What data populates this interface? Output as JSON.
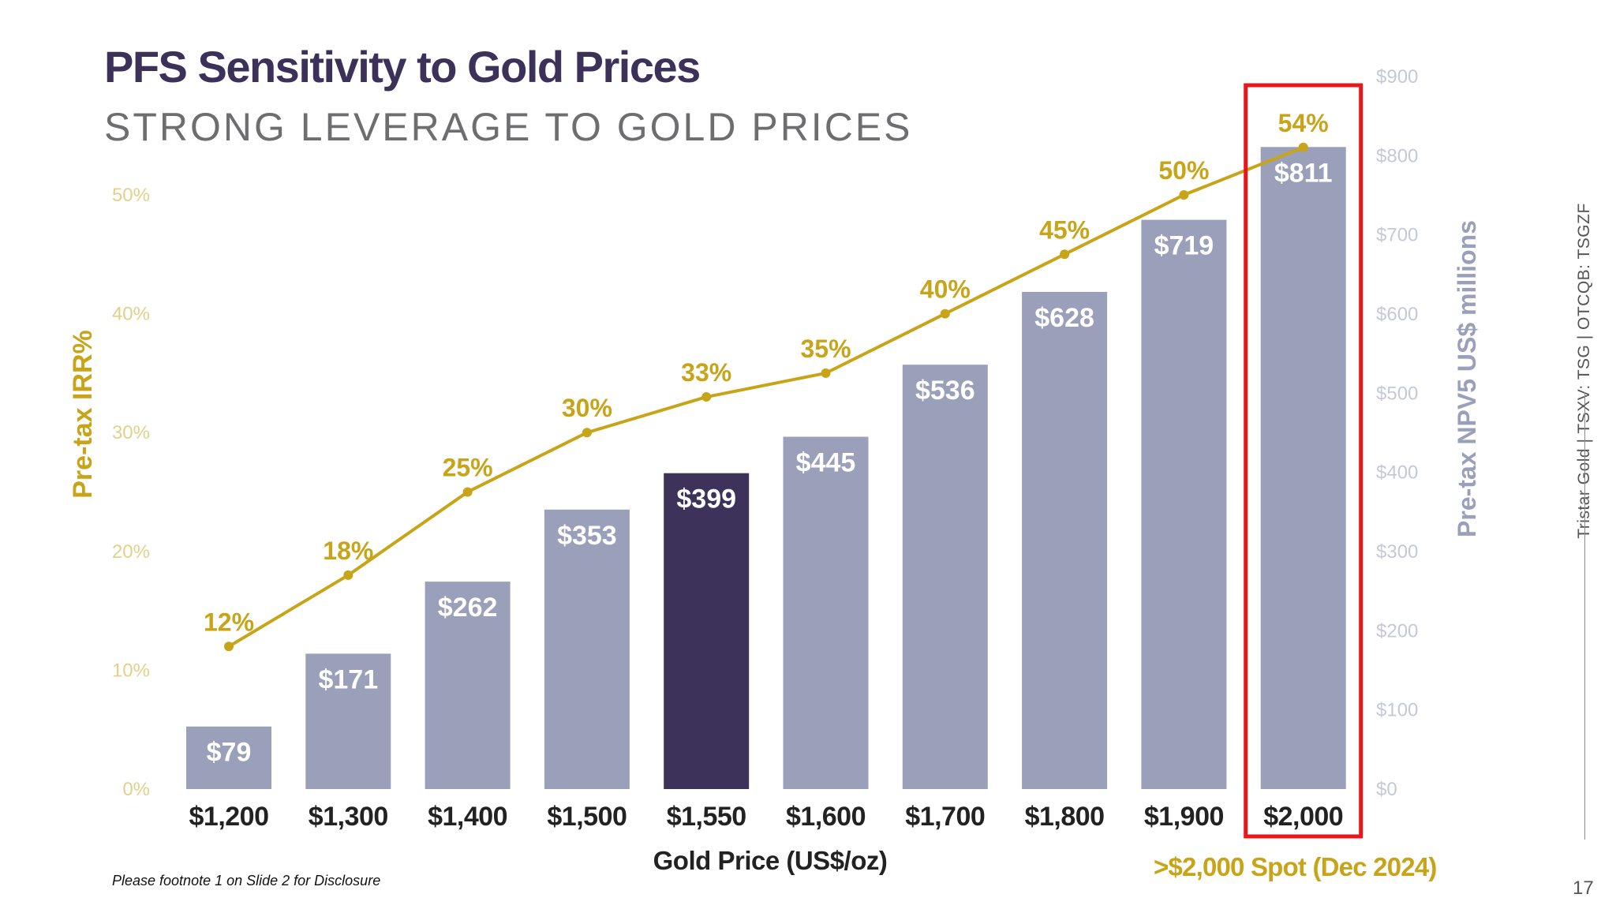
{
  "slide": {
    "title": "PFS Sensitivity to Gold Prices",
    "subtitle": "STRONG LEVERAGE TO GOLD PRICES",
    "footnote": "Please footnote 1 on Slide 2 for Disclosure",
    "spot_note": ">$2,000 Spot (Dec 2024)",
    "side_label": "Tristar Gold | TSXV: TSG | OTCQB: TSGZF",
    "page_number": "17"
  },
  "colors": {
    "bar": "#9a9fba",
    "bar_highlight": "#3d325a",
    "line": "#c8a418",
    "left_axis_text": "#e3d08a",
    "right_axis_text": "#c5c8d8",
    "right_axis_title": "#9a9fba",
    "highlight_box": "#e8171b"
  },
  "chart_data": {
    "type": "bar+line",
    "categories": [
      "$1,200",
      "$1,300",
      "$1,400",
      "$1,500",
      "$1,550",
      "$1,600",
      "$1,700",
      "$1,800",
      "$1,900",
      "$2,000"
    ],
    "xlabel": "Gold Price (US$/oz)",
    "highlight_category_index": 4,
    "boxed_category_index": 9,
    "series": [
      {
        "kind": "bar",
        "axis": "right",
        "values": [
          79,
          171,
          262,
          353,
          399,
          445,
          536,
          628,
          719,
          811
        ],
        "labels": [
          "$79",
          "$171",
          "$262",
          "$353",
          "$399",
          "$445",
          "$536",
          "$628",
          "$719",
          "$811"
        ]
      },
      {
        "kind": "line",
        "axis": "left",
        "values": [
          12,
          18,
          25,
          30,
          33,
          35,
          40,
          45,
          50,
          54
        ],
        "labels": [
          "12%",
          "18%",
          "25%",
          "30%",
          "33%",
          "35%",
          "40%",
          "45%",
          "50%",
          "54%"
        ]
      }
    ],
    "left_axis": {
      "label": "Pre-tax IRR%",
      "ylim": [
        0,
        60
      ],
      "ticks": [
        0,
        10,
        20,
        30,
        40,
        50
      ],
      "tick_labels": [
        "0%",
        "10%",
        "20%",
        "30%",
        "40%",
        "50%"
      ]
    },
    "right_axis": {
      "label": "Pre-tax NPV5 US$ millions",
      "ylim": [
        0,
        900
      ],
      "ticks": [
        0,
        100,
        200,
        300,
        400,
        500,
        600,
        700,
        800,
        900
      ],
      "tick_labels": [
        "$0",
        "$100",
        "$200",
        "$300",
        "$400",
        "$500",
        "$600",
        "$700",
        "$800",
        "$900"
      ]
    },
    "grid": false
  }
}
